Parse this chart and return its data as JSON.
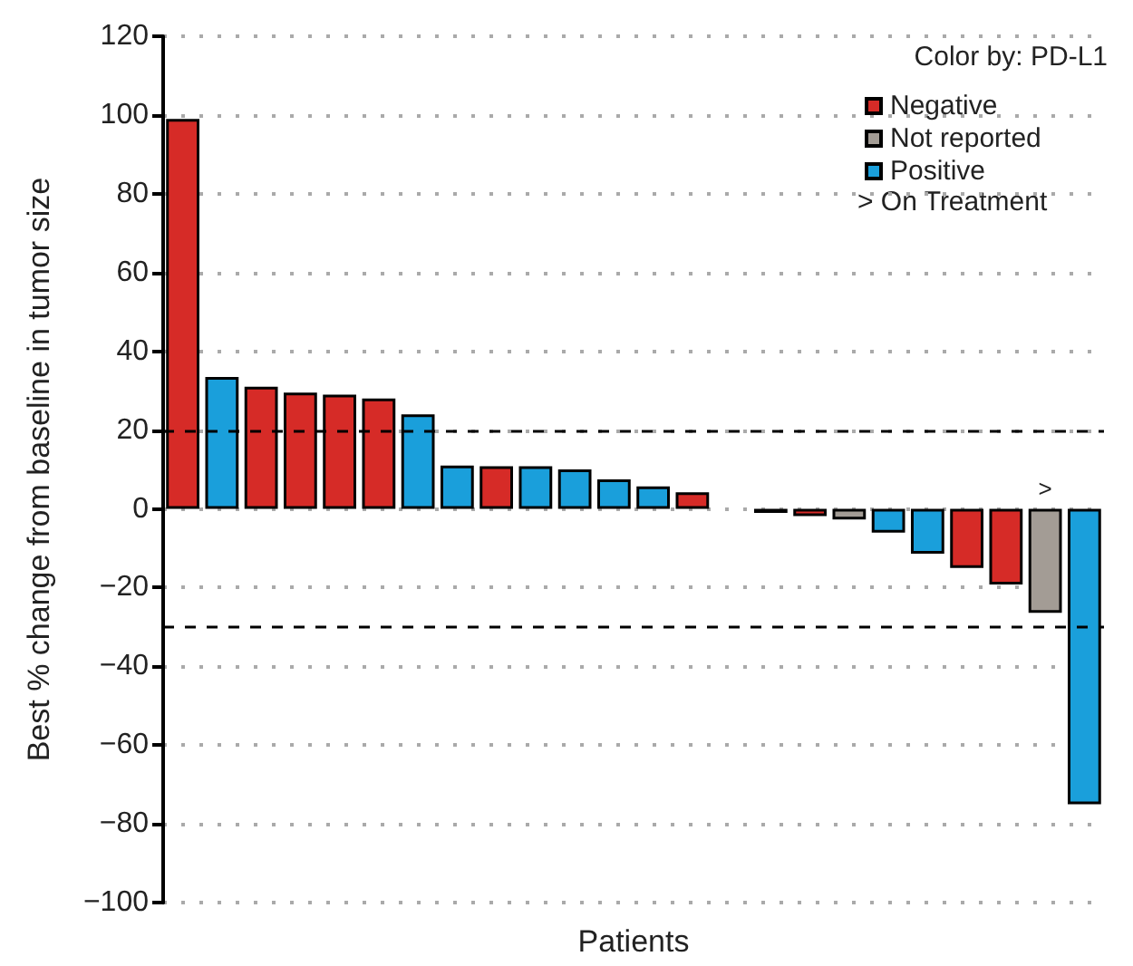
{
  "chart_data": {
    "type": "bar",
    "categories": [
      null,
      null,
      null,
      null,
      null,
      null,
      null,
      null,
      null,
      null,
      null,
      null,
      null,
      null,
      null,
      null,
      null,
      null,
      null,
      null,
      null,
      null,
      null,
      null
    ],
    "series": [
      {
        "name": "Negative",
        "color": "#d62b27",
        "values": [
          99,
          null,
          31,
          29.5,
          29,
          28,
          null,
          null,
          10.8,
          null,
          null,
          null,
          null,
          4.2,
          null,
          -1,
          -1.8,
          null,
          null,
          null,
          -15,
          -19.2,
          null,
          null
        ]
      },
      {
        "name": "Not reported",
        "color": "#a39c95",
        "values": [
          null,
          null,
          null,
          null,
          null,
          null,
          null,
          null,
          null,
          null,
          null,
          null,
          null,
          null,
          null,
          null,
          null,
          -2.7,
          null,
          null,
          null,
          null,
          -26.4,
          null
        ],
        "value_labels": [
          null,
          null,
          null,
          null,
          null,
          null,
          null,
          null,
          null,
          null,
          null,
          null,
          null,
          null,
          null,
          null,
          null,
          null,
          null,
          null,
          null,
          null,
          ">",
          null
        ]
      },
      {
        "name": "Positive",
        "color": "#1a9fdb",
        "values": [
          null,
          33.5,
          null,
          null,
          null,
          null,
          24,
          11,
          null,
          10.8,
          10,
          7.5,
          5.7,
          null,
          null,
          null,
          null,
          null,
          -6,
          -11.4,
          null,
          null,
          null,
          -75
        ]
      }
    ],
    "xlabel": "Patients",
    "ylabel": "Best % change from baseline in tumor size",
    "ylim": [
      -100,
      120
    ],
    "yticks": [
      -100,
      -80,
      -60,
      -40,
      -20,
      0,
      20,
      40,
      60,
      80,
      100,
      120
    ],
    "grid": "y",
    "legend": "top right",
    "legend_title": "Color by: PD-L1",
    "annotations": [
      "> On Treatment"
    ],
    "ref_lines": [
      {
        "axis": "y",
        "value": 20,
        "line_style": "dashed"
      },
      {
        "axis": "y",
        "value": -30,
        "line_style": "dashed"
      }
    ]
  }
}
